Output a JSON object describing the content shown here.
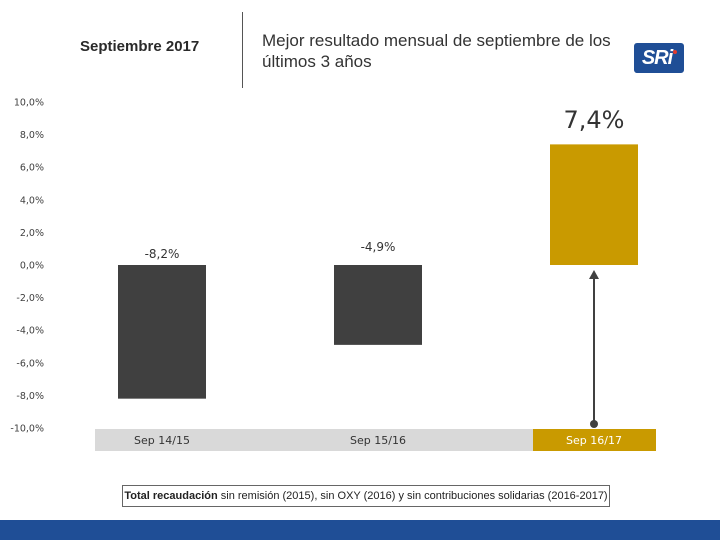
{
  "header": {
    "period": "Septiembre 2017",
    "title": "Mejor resultado mensual de septiembre de los últimos 3 años",
    "logo_text": "SRi",
    "brand_color": "#1f4e96"
  },
  "chart_data": {
    "type": "bar",
    "categories": [
      "Sep 14/15",
      "Sep 15/16",
      "Sep 16/17"
    ],
    "values": [
      -8.2,
      -4.9,
      7.4
    ],
    "data_labels": [
      "-8,2%",
      "-4,9%",
      "7,4%"
    ],
    "ylim": [
      -10,
      10
    ],
    "yticks": [
      10,
      8,
      6,
      4,
      2,
      0,
      -2,
      -4,
      -6,
      -8,
      -10
    ],
    "ytick_labels": [
      "10,0%",
      "8,0%",
      "6,0%",
      "4,0%",
      "2,0%",
      "0,0%",
      "-2,0%",
      "-4,0%",
      "-6,0%",
      "-8,0%",
      "-10,0%"
    ],
    "grid": false,
    "bar_colors": [
      "#404040",
      "#404040",
      "#c99a00"
    ],
    "category_box_colors": [
      "#d9d9d9",
      "#d9d9d9",
      "#c99a00"
    ],
    "highlight_arrow": {
      "category": "Sep 16/17",
      "from": -10,
      "to": 0
    }
  },
  "footnote": {
    "bold": "Total recaudación",
    "rest": " sin remisión (2015), sin OXY (2016) y sin contribuciones solidarias (2016-2017)"
  }
}
